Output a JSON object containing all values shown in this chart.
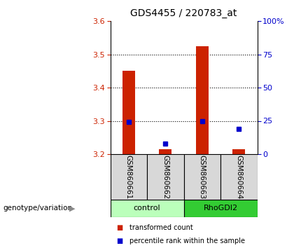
{
  "title": "GDS4455 / 220783_at",
  "samples": [
    "GSM860661",
    "GSM860662",
    "GSM860663",
    "GSM860664"
  ],
  "bar_values": [
    3.45,
    3.215,
    3.525,
    3.215
  ],
  "percentile_values": [
    24,
    8,
    25,
    19
  ],
  "ylim_left": [
    3.2,
    3.6
  ],
  "ylim_right": [
    0,
    100
  ],
  "yticks_left": [
    3.2,
    3.3,
    3.4,
    3.5,
    3.6
  ],
  "yticks_right": [
    0,
    25,
    50,
    75,
    100
  ],
  "bar_color": "#cc2200",
  "square_color": "#0000cc",
  "groups": [
    {
      "label": "control",
      "indices": [
        0,
        1
      ],
      "bg_color": "#bbffbb"
    },
    {
      "label": "RhoGDI2",
      "indices": [
        2,
        3
      ],
      "bg_color": "#33cc33"
    }
  ],
  "legend_items": [
    {
      "label": "transformed count",
      "color": "#cc2200"
    },
    {
      "label": "percentile rank within the sample",
      "color": "#0000cc"
    }
  ],
  "bar_width": 0.35,
  "x_positions": [
    0,
    1,
    2,
    3
  ]
}
